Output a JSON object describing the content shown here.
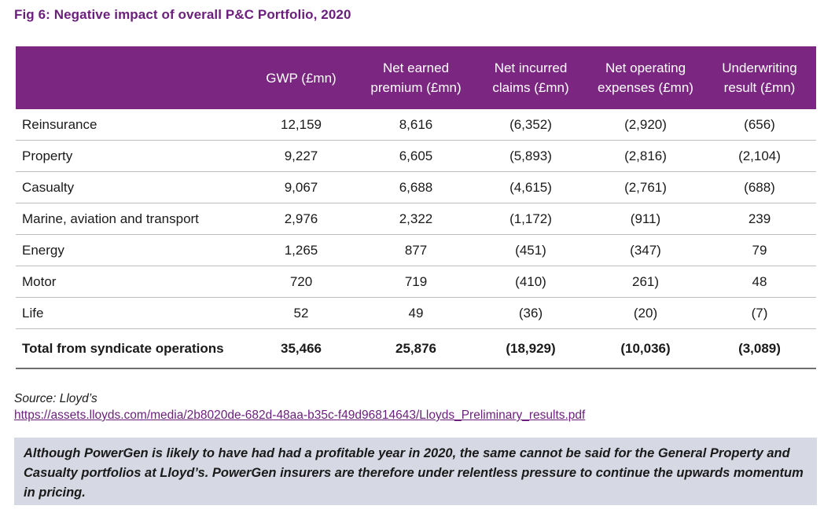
{
  "title": "Fig 6: Negative impact of overall P&C Portfolio, 2020",
  "table": {
    "columns": [
      "",
      "GWP (£mn)",
      "Net earned premium (£mn)",
      "Net incurred claims (£mn)",
      "Net operating expenses (£mn)",
      "Underwriting result (£mn)"
    ],
    "rows": [
      [
        "Reinsurance",
        "12,159",
        "8,616",
        "(6,352)",
        "(2,920)",
        "(656)"
      ],
      [
        "Property",
        "9,227",
        "6,605",
        "(5,893)",
        "(2,816)",
        "(2,104)"
      ],
      [
        "Casualty",
        "9,067",
        "6,688",
        "(4,615)",
        "(2,761)",
        "(688)"
      ],
      [
        "Marine, aviation and transport",
        "2,976",
        "2,322",
        "(1,172)",
        "(911)",
        "239"
      ],
      [
        "Energy",
        "1,265",
        "877",
        "(451)",
        "(347)",
        "79"
      ],
      [
        "Motor",
        "720",
        "719",
        "(410)",
        "261)",
        "48"
      ],
      [
        "Life",
        "52",
        "49",
        "(36)",
        "(20)",
        "(7)"
      ]
    ],
    "total": [
      "Total from syndicate operations",
      "35,466",
      "25,876",
      "(18,929)",
      "(10,036)",
      "(3,089)"
    ]
  },
  "source": {
    "label": "Source: Lloyd’s",
    "url": "https://assets.lloyds.com/media/2b8020de-682d-48aa-b35c-f49d96814643/Lloyds_Preliminary_results.pdf"
  },
  "callout": "Although PowerGen is likely to have had had a profitable year in 2020, the same cannot be said for the General Property and Casualty portfolios at Lloyd’s. PowerGen insurers are therefore under relentless pressure to continue the upwards momentum in pricing."
}
